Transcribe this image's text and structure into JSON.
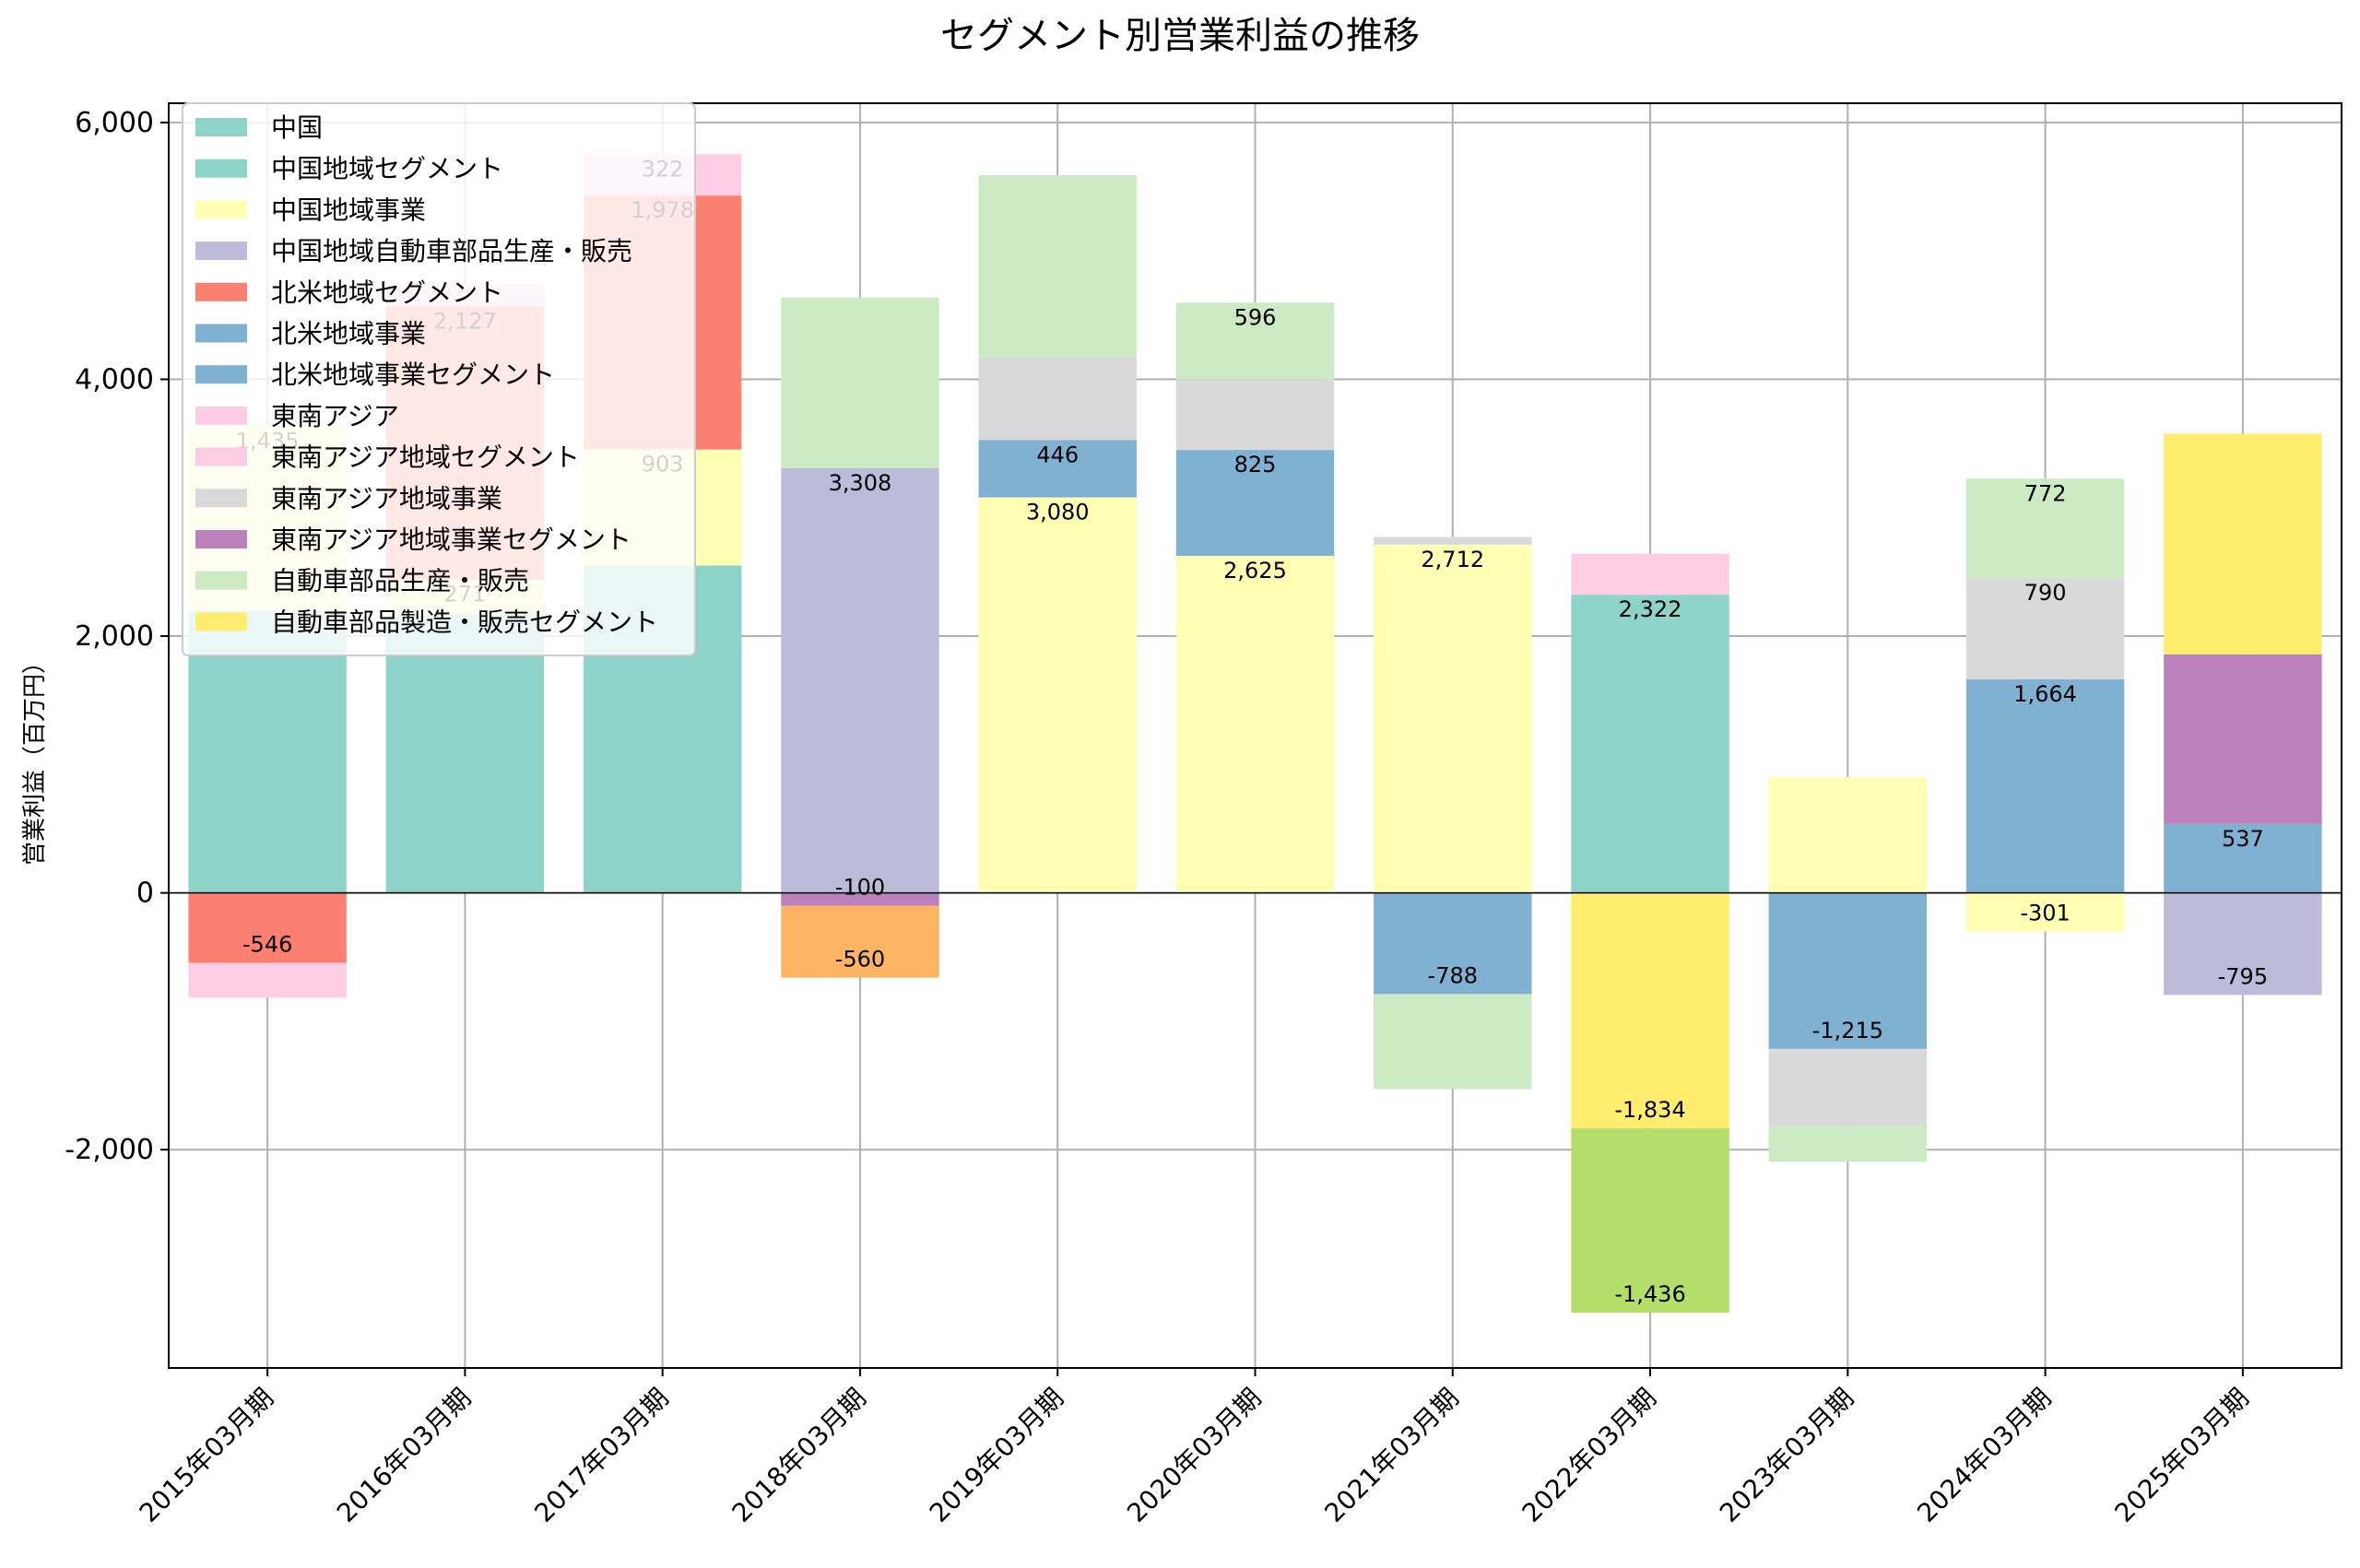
{
  "chart_data": {
    "type": "bar",
    "stacked": true,
    "title": "セグメント別営業利益の推移",
    "xlabel": "",
    "ylabel": "営業利益（百万円）",
    "ylim": [
      -3700,
      6150
    ],
    "yticks": [
      -2000,
      0,
      2000,
      4000,
      6000
    ],
    "ytick_labels": [
      "-2,000",
      "0",
      "2,000",
      "4,000",
      "6,000"
    ],
    "grid": true,
    "legend_position": "top-left",
    "categories": [
      "2015年03月期",
      "2016年03月期",
      "2017年03月期",
      "2018年03月期",
      "2019年03月期",
      "2020年03月期",
      "2021年03月期",
      "2022年03月期",
      "2023年03月期",
      "2024年03月期",
      "2025年03月期"
    ],
    "series": [
      {
        "name": "中国",
        "color": "#8dd3c7",
        "values": [
          2200,
          null,
          null,
          null,
          null,
          null,
          null,
          null,
          null,
          null,
          null
        ]
      },
      {
        "name": "中国地域セグメント",
        "color": "#8dd3c7",
        "values": [
          null,
          2170,
          2550,
          null,
          null,
          null,
          null,
          2322,
          null,
          null,
          null
        ]
      },
      {
        "name": "中国地域事業",
        "color": "#ffffb3",
        "values": [
          1435,
          271,
          903,
          null,
          3080,
          2625,
          2712,
          null,
          900,
          -301,
          null
        ]
      },
      {
        "name": "中国地域自動車部品生産・販売",
        "color": "#bebada",
        "values": [
          null,
          null,
          null,
          3308,
          null,
          null,
          null,
          null,
          null,
          null,
          -795
        ]
      },
      {
        "name": "北米地域セグメント",
        "color": "#fb8072",
        "values": [
          -546,
          2127,
          1978,
          null,
          null,
          null,
          null,
          null,
          null,
          null,
          null
        ]
      },
      {
        "name": "北米地域事業",
        "color": "#80b1d3",
        "values": [
          null,
          null,
          null,
          null,
          446,
          825,
          -788,
          null,
          -1215,
          1664,
          537
        ]
      },
      {
        "name": "北米地域事業セグメント",
        "color": "#80b1d3",
        "values": [
          null,
          null,
          null,
          null,
          null,
          null,
          null,
          null,
          null,
          null,
          null
        ]
      },
      {
        "name": "東南アジア",
        "color": "#fccde5",
        "values": [
          -270,
          172,
          322,
          null,
          null,
          null,
          null,
          320,
          null,
          null,
          null
        ]
      },
      {
        "name": "東南アジア地域セグメント",
        "color": "#fccde5",
        "values": [
          null,
          null,
          null,
          null,
          null,
          null,
          null,
          null,
          null,
          null,
          null
        ]
      },
      {
        "name": "東南アジア地域事業",
        "color": "#d9d9d9",
        "values": [
          null,
          null,
          null,
          null,
          645,
          551,
          60,
          null,
          -600,
          790,
          null
        ]
      },
      {
        "name": "東南アジア地域事業セグメント",
        "color": "#bc80bd",
        "values": [
          null,
          null,
          null,
          -100,
          null,
          null,
          null,
          null,
          null,
          null,
          1320
        ]
      },
      {
        "name": "自動車部品生産・販売",
        "color": "#ccebc5",
        "values": [
          null,
          null,
          null,
          1330,
          1420,
          596,
          -740,
          null,
          -280,
          772,
          null
        ]
      },
      {
        "name": "自動車部品製造・販売セグメント",
        "color": "#ffed6f",
        "values": [
          null,
          null,
          null,
          null,
          null,
          null,
          null,
          -1834,
          null,
          null,
          1720
        ]
      },
      {
        "name": "",
        "color": "#fdb462",
        "values": [
          null,
          null,
          null,
          -560,
          null,
          null,
          null,
          null,
          null,
          null,
          null
        ]
      },
      {
        "name": "",
        "color": "#b3de69",
        "values": [
          null,
          null,
          null,
          null,
          null,
          null,
          null,
          -1436,
          null,
          null,
          null
        ]
      }
    ],
    "data_labels": [
      {
        "category": "2015年03月期",
        "text": "-546"
      },
      {
        "category": "2015年03月期",
        "text": "1,435"
      },
      {
        "category": "2016年03月期",
        "text": "2,127"
      },
      {
        "category": "2016年03月期",
        "text": "271"
      },
      {
        "category": "2017年03月期",
        "text": "1,978"
      },
      {
        "category": "2017年03月期",
        "text": "322"
      },
      {
        "category": "2017年03月期",
        "text": "903"
      },
      {
        "category": "2018年03月期",
        "text": "3,308"
      },
      {
        "category": "2018年03月期",
        "text": "-560"
      },
      {
        "category": "2018年03月期",
        "text": "-100"
      },
      {
        "category": "2019年03月期",
        "text": "3,080"
      },
      {
        "category": "2019年03月期",
        "text": "446"
      },
      {
        "category": "2020年03月期",
        "text": "2,625"
      },
      {
        "category": "2020年03月期",
        "text": "825"
      },
      {
        "category": "2020年03月期",
        "text": "596"
      },
      {
        "category": "2021年03月期",
        "text": "2,712"
      },
      {
        "category": "2021年03月期",
        "text": "-788"
      },
      {
        "category": "2022年03月期",
        "text": "2,322"
      },
      {
        "category": "2022年03月期",
        "text": "-1,436"
      },
      {
        "category": "2022年03月期",
        "text": "-1,834"
      },
      {
        "category": "2023年03月期",
        "text": "-1,215"
      },
      {
        "category": "2024年03月期",
        "text": "1,664"
      },
      {
        "category": "2024年03月期",
        "text": "790"
      },
      {
        "category": "2024年03月期",
        "text": "772"
      },
      {
        "category": "2024年03月期",
        "text": "-301"
      },
      {
        "category": "2025年03月期",
        "text": "537"
      },
      {
        "category": "2025年03月期",
        "text": "-795"
      }
    ]
  }
}
